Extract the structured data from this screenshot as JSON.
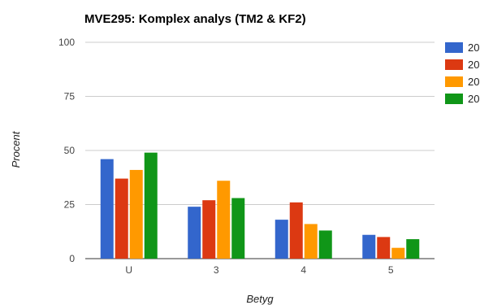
{
  "chart_data": {
    "type": "bar",
    "title": "MVE295: Komplex analys (TM2 & KF2)",
    "xlabel": "Betyg",
    "ylabel": "Procent",
    "categories": [
      "U",
      "3",
      "4",
      "5"
    ],
    "ylim": [
      0,
      100
    ],
    "yticks": [
      0,
      25,
      50,
      75,
      100
    ],
    "grid": true,
    "legend_position": "right",
    "series": [
      {
        "name": "20",
        "color": "#3366cc",
        "values": [
          46,
          24,
          18,
          11
        ]
      },
      {
        "name": "20",
        "color": "#dc3912",
        "values": [
          37,
          27,
          26,
          10
        ]
      },
      {
        "name": "20",
        "color": "#ff9900",
        "values": [
          41,
          36,
          16,
          5
        ]
      },
      {
        "name": "20",
        "color": "#109618",
        "values": [
          49,
          28,
          13,
          9
        ]
      }
    ]
  }
}
